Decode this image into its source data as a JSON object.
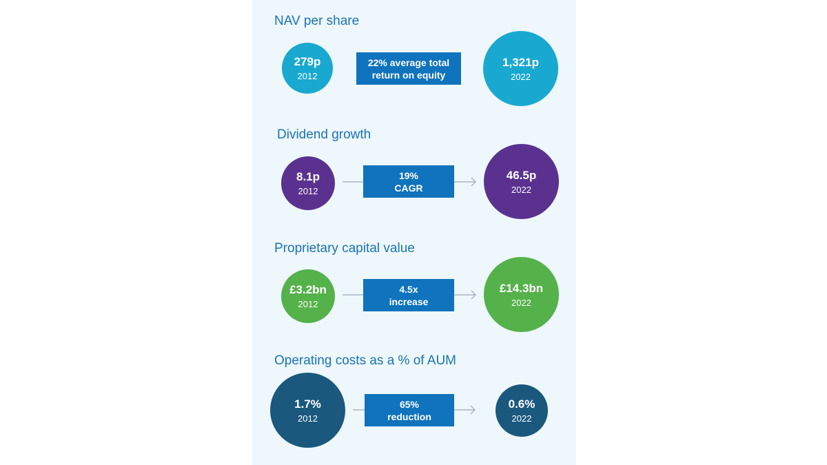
{
  "colors": {
    "panel_bg": "#eef7fb",
    "title": "#1a73b5",
    "box": "#0f73bd",
    "arrow": "#9aaab8",
    "nav": "#19a9d0",
    "dividend": "#5b3190",
    "capital": "#55b14a",
    "costs": "#1a587e"
  },
  "nav": {
    "title": "NAV per share",
    "start_value": "279p",
    "start_year": "2012",
    "box_line1": "22% average total",
    "box_line2": "return on equity",
    "end_value": "1,321p",
    "end_year": "2022"
  },
  "dividend": {
    "title": "Dividend growth",
    "start_value": "8.1p",
    "start_year": "2012",
    "box_line1": "19%",
    "box_line2": "CAGR",
    "end_value": "46.5p",
    "end_year": "2022"
  },
  "capital": {
    "title": "Proprietary capital value",
    "start_value": "£3.2bn",
    "start_year": "2012",
    "box_line1": "4.5x",
    "box_line2": "increase",
    "end_value": "£14.3bn",
    "end_year": "2022"
  },
  "costs": {
    "title": "Operating costs as a % of AUM",
    "start_value": "1.7%",
    "start_year": "2012",
    "box_line1": "65%",
    "box_line2": "reduction",
    "end_value": "0.6%",
    "end_year": "2022"
  }
}
